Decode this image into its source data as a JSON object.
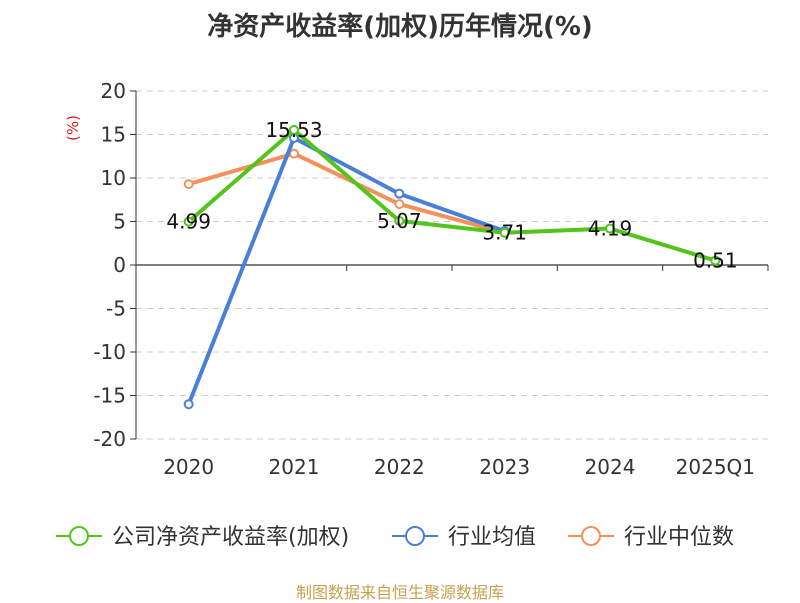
{
  "chart_data": {
    "type": "line",
    "title": "净资产收益率(加权)历年情况(%)",
    "ylabel": "(%)",
    "xlabel": "",
    "ylim": [
      -20,
      20
    ],
    "yticks": [
      20,
      15,
      10,
      5,
      0,
      -5,
      -10,
      -15,
      -20
    ],
    "categories": [
      "2020",
      "2021",
      "2022",
      "2023",
      "2024",
      "2025Q1"
    ],
    "series": [
      {
        "name": "公司净资产收益率(加权)",
        "color": "#52c41a",
        "values": [
          4.99,
          15.53,
          5.07,
          3.71,
          4.19,
          0.51
        ],
        "labels": [
          "4.99",
          "15.53",
          "5.07",
          "3.71",
          "4.19",
          "0.51"
        ]
      },
      {
        "name": "行业均值",
        "color": "#4a7fd8",
        "values": [
          -16.0,
          14.6,
          8.2,
          3.9,
          null,
          null
        ]
      },
      {
        "name": "行业中位数",
        "color": "#f4905a",
        "values": [
          9.3,
          12.8,
          7.0,
          3.7,
          null,
          null
        ]
      }
    ],
    "grid": true,
    "legend": "bottom"
  },
  "source": "制图数据来自恒生聚源数据库"
}
